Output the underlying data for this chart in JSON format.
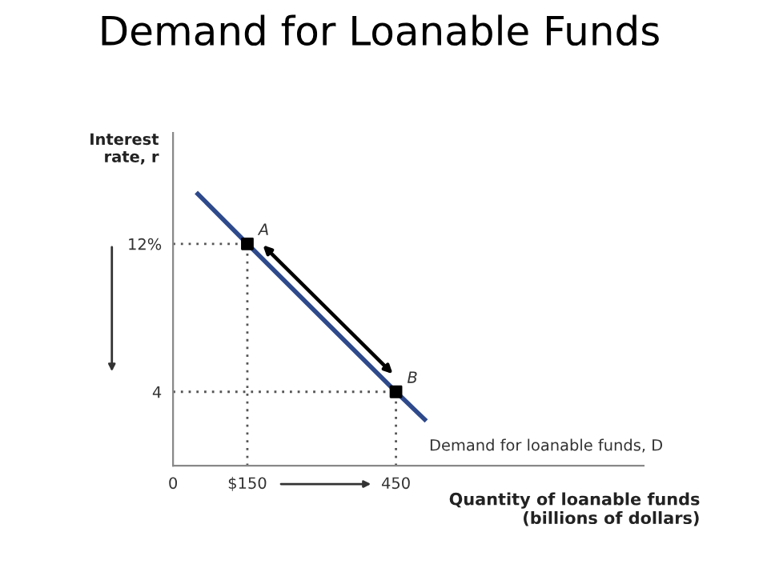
{
  "chart_data": {
    "type": "line",
    "title": "Demand for Loanable Funds",
    "xlabel": "Quantity of loanable funds\n(billions of dollars)",
    "ylabel": "Interest\nrate, r",
    "series": [
      {
        "x": [
          50,
          150,
          450,
          508
        ],
        "values": [
          14.7,
          12,
          4,
          2.5
        ],
        "color": "#2e4a8c"
      },
      {
        "type": "scatter",
        "x": [
          150,
          450
        ],
        "values": [
          12,
          4
        ],
        "color": "#000000"
      }
    ],
    "xlim": [
      0,
      950
    ],
    "ylim": [
      0,
      18
    ],
    "xticks": [
      {
        "value": 0,
        "label": "0"
      },
      {
        "value": 150,
        "label": "$150"
      },
      450
    ],
    "yticks": [
      4,
      {
        "value": 12,
        "label": "12%"
      }
    ],
    "ref_lines": [
      {
        "axis": "y",
        "value": 12,
        "line_style": "dotted",
        "color": "#555555"
      },
      {
        "axis": "y",
        "value": 4,
        "line_style": "dotted",
        "color": "#555555"
      },
      {
        "axis": "x",
        "value": 150,
        "line_style": "dotted",
        "color": "#555555"
      },
      {
        "axis": "x",
        "value": 450,
        "line_style": "dotted",
        "color": "#555555"
      }
    ],
    "annotations": [
      {
        "text": "A",
        "x": 150,
        "y": 12
      },
      {
        "text": "B",
        "x": 450,
        "y": 4
      },
      {
        "text": "Demand for loanable funds, D",
        "x": 508,
        "y": 2.5
      }
    ],
    "grid": false
  }
}
